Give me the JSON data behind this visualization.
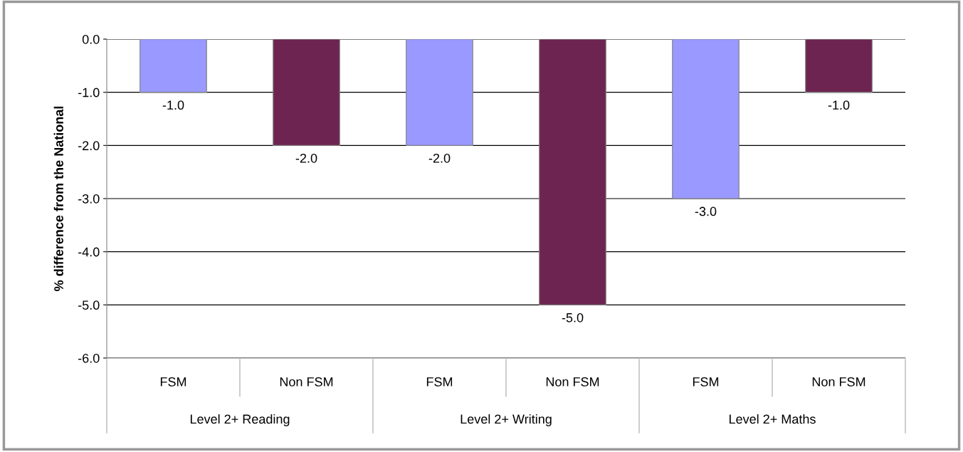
{
  "chart_data": {
    "type": "bar",
    "ylabel": "% difference from the National",
    "categories": [
      "FSM",
      "Non FSM",
      "FSM",
      "Non FSM",
      "FSM",
      "Non FSM"
    ],
    "values": [
      -1.0,
      -2.0,
      -2.0,
      -5.0,
      -3.0,
      -1.0
    ],
    "colors": [
      "#9999ff",
      "#6e2450",
      "#9999ff",
      "#6e2450",
      "#9999ff",
      "#6e2450"
    ],
    "value_labels": [
      "-1.0",
      "-2.0",
      "-2.0",
      "-5.0",
      "-3.0",
      "-1.0"
    ],
    "ylim": [
      -6,
      0
    ],
    "yticks": [
      {
        "value": 0,
        "label": "0.0"
      },
      {
        "value": -1,
        "label": "-1.0"
      },
      {
        "value": -2,
        "label": "-2.0"
      },
      {
        "value": -3,
        "label": "-3.0"
      },
      {
        "value": -4,
        "label": "-4.0"
      },
      {
        "value": -5,
        "label": "-5.0"
      },
      {
        "value": -6,
        "label": "-6.0"
      }
    ],
    "grid": "y",
    "legend": false,
    "annotations": [
      "Level 2+ Reading",
      "Level 2+ Writing",
      "Level 2+ Maths"
    ]
  }
}
